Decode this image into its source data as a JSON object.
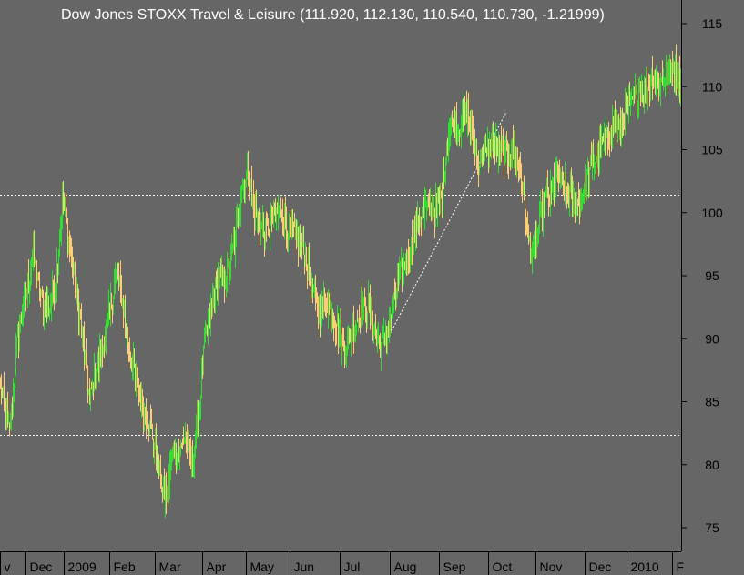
{
  "chart_data": {
    "type": "ohlc",
    "title": "Dow Jones STOXX Travel & Leisure (111.920, 112.130, 110.540, 110.730, -1.21999)",
    "last": {
      "open": 111.92,
      "high": 112.13,
      "low": 110.54,
      "close": 110.73,
      "change": -1.21999
    },
    "ylim": [
      72,
      118
    ],
    "y_ticks": [
      "75",
      "80",
      "85",
      "90",
      "95",
      "100",
      "105",
      "110",
      "115"
    ],
    "y_tick_values": [
      75,
      80,
      85,
      90,
      95,
      100,
      105,
      110,
      115
    ],
    "x_ticks": [
      "v",
      "Dec",
      "2009",
      "Feb",
      "Mar",
      "Apr",
      "May",
      "Jun",
      "Jul",
      "Aug",
      "Sep",
      "Oct",
      "Nov",
      "Dec",
      "2010",
      "F"
    ],
    "x_tick_index": [
      0,
      28,
      70,
      120,
      170,
      222,
      270,
      318,
      373,
      428,
      482,
      536,
      588,
      642,
      688,
      738
    ],
    "x_range": [
      0,
      748
    ],
    "reference_lines": [
      {
        "style": "dashed",
        "y": 101.4
      },
      {
        "style": "dashed",
        "y": 82.4
      }
    ],
    "trendline": {
      "style": "dashed",
      "x": [
        422,
        555
      ],
      "y": [
        89.6,
        107.9
      ]
    },
    "series_anchors": {
      "x": [
        0,
        10,
        18,
        28,
        36,
        45,
        55,
        62,
        68,
        75,
        82,
        90,
        98,
        104,
        112,
        120,
        128,
        134,
        140,
        148,
        155,
        162,
        170,
        178,
        183,
        190,
        196,
        203,
        210,
        218,
        224,
        232,
        240,
        246,
        252,
        258,
        265,
        272,
        278,
        285,
        292,
        300,
        308,
        315,
        320,
        328,
        335,
        342,
        350,
        358,
        365,
        372,
        378,
        385,
        392,
        398,
        405,
        412,
        418,
        422,
        430,
        438,
        445,
        452,
        460,
        468,
        476,
        484,
        492,
        498,
        505,
        512,
        518,
        525,
        532,
        540,
        548,
        556,
        564,
        572,
        578,
        585,
        592,
        598,
        604,
        612,
        618,
        625,
        632,
        638,
        645,
        652,
        660,
        666,
        672,
        680,
        688,
        695,
        702,
        710,
        716,
        722,
        730,
        738,
        746
      ],
      "close": [
        86.5,
        82.5,
        89.5,
        93.5,
        96.5,
        93.0,
        92.5,
        95.5,
        101.0,
        98.0,
        94.0,
        90.5,
        85.0,
        87.5,
        89.0,
        92.0,
        95.5,
        93.0,
        89.5,
        87.0,
        85.0,
        83.5,
        81.5,
        78.0,
        77.5,
        81.5,
        80.5,
        82.5,
        80.0,
        84.0,
        89.5,
        92.5,
        95.0,
        94.5,
        96.0,
        98.0,
        102.0,
        103.5,
        100.5,
        99.0,
        98.5,
        99.5,
        100.5,
        98.5,
        99.0,
        97.5,
        96.5,
        94.0,
        92.0,
        93.0,
        92.0,
        90.5,
        89.5,
        90.5,
        91.5,
        92.5,
        92.5,
        90.5,
        89.5,
        90.0,
        92.0,
        95.0,
        96.0,
        97.5,
        99.5,
        100.5,
        100.0,
        101.0,
        106.5,
        107.5,
        107.0,
        108.0,
        106.0,
        104.0,
        104.5,
        105.5,
        105.0,
        104.5,
        105.0,
        103.0,
        98.5,
        96.5,
        99.5,
        101.0,
        101.5,
        103.0,
        102.0,
        101.5,
        100.5,
        101.0,
        103.0,
        104.0,
        105.5,
        106.0,
        107.0,
        106.5,
        108.5,
        109.0,
        110.0,
        109.5,
        111.0,
        110.0,
        111.0,
        111.5,
        110.7
      ]
    }
  }
}
